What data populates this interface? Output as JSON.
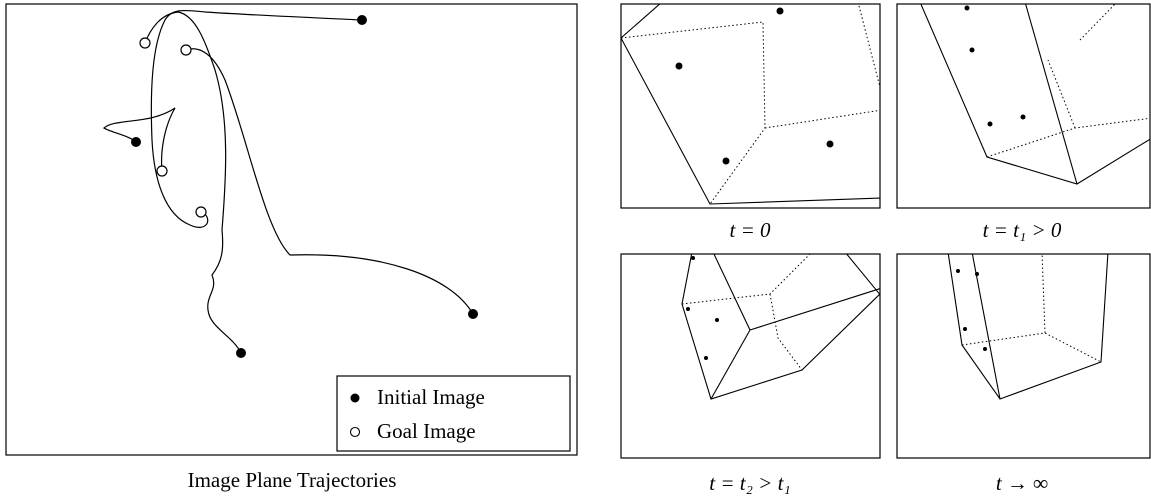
{
  "figure": {
    "left_panel": {
      "legend": [
        "Initial Image",
        "Goal Image"
      ],
      "caption": "Image Plane Trajectories"
    },
    "right_panels": [
      {
        "caption": "t = 0"
      },
      {
        "caption": "t = t₁ > 0"
      },
      {
        "caption": "t = t₂ > t₁"
      },
      {
        "caption": "t → ∞"
      }
    ]
  }
}
